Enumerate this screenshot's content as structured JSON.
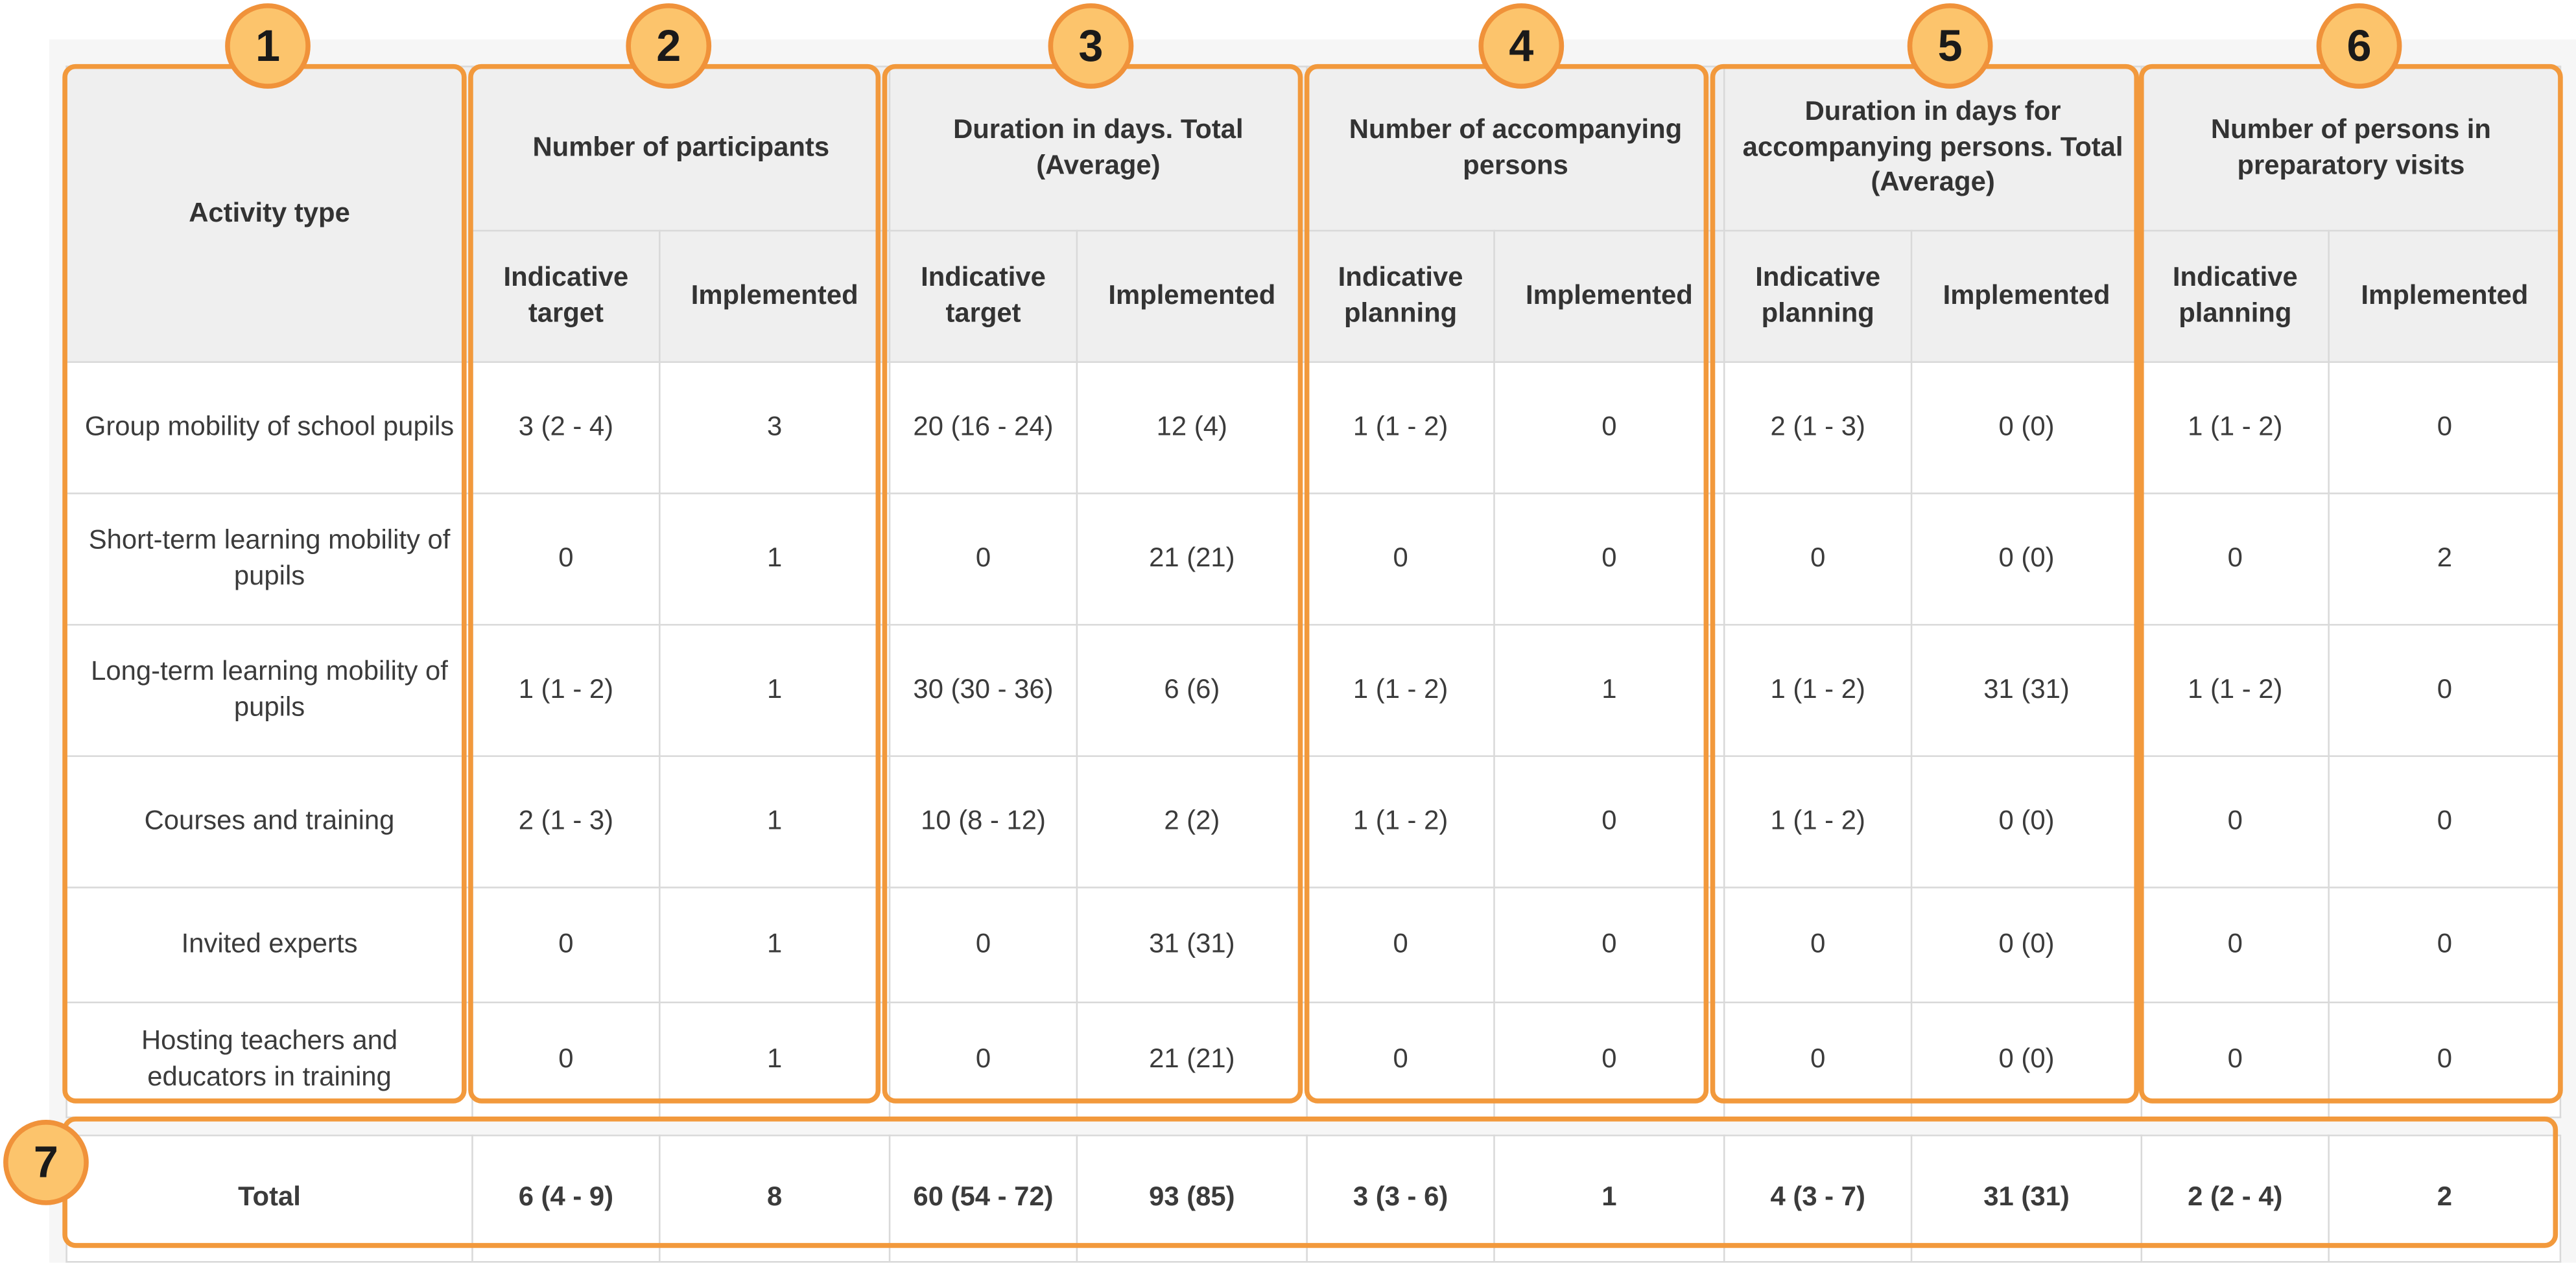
{
  "header": {
    "activity_type": "Activity type",
    "groups": [
      "Number of participants",
      "Duration in days. Total (Average)",
      "Number of accompanying persons",
      "Duration in days for accompanying persons. Total (Average)",
      "Number of persons in preparatory visits"
    ],
    "sub": [
      [
        "Indicative target",
        "Implemented"
      ],
      [
        "Indicative target",
        "Implemented"
      ],
      [
        "Indicative planning",
        "Implemented"
      ],
      [
        "Indicative planning",
        "Implemented"
      ],
      [
        "Indicative planning",
        "Implemented"
      ]
    ]
  },
  "rows": [
    {
      "activity": "Group mobility of school pupils",
      "values": [
        "3 (2 - 4)",
        "3",
        "20 (16 - 24)",
        "12 (4)",
        "1 (1 - 2)",
        "0",
        "2 (1 - 3)",
        "0 (0)",
        "1 (1 - 2)",
        "0"
      ]
    },
    {
      "activity": "Short-term learning mobility of pupils",
      "values": [
        "0",
        "1",
        "0",
        "21 (21)",
        "0",
        "0",
        "0",
        "0 (0)",
        "0",
        "2"
      ]
    },
    {
      "activity": "Long-term learning mobility of pupils",
      "values": [
        "1 (1 - 2)",
        "1",
        "30 (30 - 36)",
        "6 (6)",
        "1 (1 - 2)",
        "1",
        "1 (1 - 2)",
        "31 (31)",
        "1 (1 - 2)",
        "0"
      ]
    },
    {
      "activity": "Courses and training",
      "values": [
        "2 (1 - 3)",
        "1",
        "10 (8 - 12)",
        "2 (2)",
        "1 (1 - 2)",
        "0",
        "1 (1 - 2)",
        "0 (0)",
        "0",
        "0"
      ]
    },
    {
      "activity": "Invited experts",
      "values": [
        "0",
        "1",
        "0",
        "31 (31)",
        "0",
        "0",
        "0",
        "0 (0)",
        "0",
        "0"
      ]
    },
    {
      "activity": "Hosting teachers and educators in training",
      "values": [
        "0",
        "1",
        "0",
        "21 (21)",
        "0",
        "0",
        "0",
        "0 (0)",
        "0",
        "0"
      ]
    }
  ],
  "total": {
    "label": "Total",
    "values": [
      "6 (4 - 9)",
      "8",
      "60 (54 - 72)",
      "93 (85)",
      "3 (3 - 6)",
      "1",
      "4 (3 - 7)",
      "31 (31)",
      "2 (2 - 4)",
      "2"
    ]
  },
  "badges": [
    "1",
    "2",
    "3",
    "4",
    "5",
    "6",
    "7"
  ],
  "colors": {
    "outline": "#f2993c",
    "badge_fill": "#fcc46c",
    "header_bg": "#efefef",
    "grid": "#d9d9d9"
  }
}
